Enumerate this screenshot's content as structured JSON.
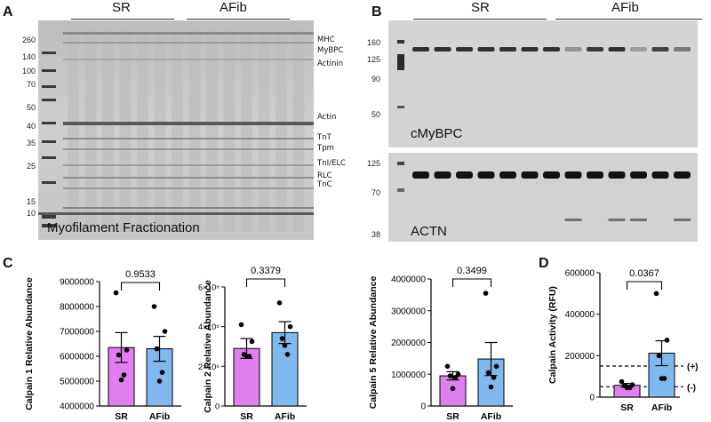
{
  "panels": {
    "A": {
      "letter": "A",
      "groups": [
        {
          "label": "SR"
        },
        {
          "label": "AFib"
        }
      ],
      "ladder": [
        "260",
        "140",
        "100",
        "70",
        "50",
        "40",
        "35",
        "25",
        "15",
        "10"
      ],
      "proteins": [
        "MHC",
        "MyBPC",
        "Actinin",
        "Actin",
        "TnT",
        "Tpm",
        "TnI/ELC",
        "RLC",
        "TnC"
      ],
      "caption": "Myofilament Fractionation"
    },
    "B": {
      "letter": "B",
      "groups": [
        {
          "label": "SR"
        },
        {
          "label": "AFib"
        }
      ],
      "top_ladder": [
        "160",
        "125",
        "90",
        "50"
      ],
      "bottom_ladder": [
        "125",
        "70",
        "38"
      ],
      "top_label": "cMyBPC",
      "bottom_label": "ACTN"
    },
    "C": {
      "letter": "C"
    },
    "D": {
      "letter": "D"
    }
  },
  "chart_data": [
    {
      "type": "bar",
      "categories": [
        "SR",
        "AFib"
      ],
      "ylabel": "Calpain 1 Relative Abundance",
      "ylim": [
        4000000,
        9000000
      ],
      "yticks": [
        "4000000",
        "5000000",
        "6000000",
        "7000000",
        "8000000",
        "9000000"
      ],
      "pvalue": "0.9533",
      "bar_colors": [
        "#e080f0",
        "#80b8f0"
      ],
      "means": [
        6350000,
        6300000
      ],
      "sem": [
        600000,
        500000
      ],
      "points": [
        [
          8550000,
          6250000,
          6050000,
          5250000,
          5050000
        ],
        [
          8000000,
          7000000,
          6300000,
          5350000,
          5000000
        ]
      ]
    },
    {
      "type": "bar",
      "categories": [
        "SR",
        "AFib"
      ],
      "ylabel": "Calpain 2 Relative Abundance",
      "ylim": [
        0,
        6000000
      ],
      "yticks": [
        "0",
        "2×10⁶",
        "4×10⁶",
        "6×10⁶"
      ],
      "pvalue": "0.3379",
      "bar_colors": [
        "#e080f0",
        "#80b8f0"
      ],
      "means": [
        2900000,
        3700000
      ],
      "sem": [
        500000,
        550000
      ],
      "points": [
        [
          4100000,
          3250000,
          2600000,
          2500000,
          2500000
        ],
        [
          5200000,
          4000000,
          3400000,
          2600000,
          3050000
        ]
      ]
    },
    {
      "type": "bar",
      "categories": [
        "SR",
        "AFib"
      ],
      "ylabel": "Calpain 5 Relative Abundance",
      "ylim": [
        0,
        4000000
      ],
      "yticks": [
        "0",
        "1000000",
        "2000000",
        "3000000",
        "4000000"
      ],
      "pvalue": "0.3499",
      "bar_colors": [
        "#e080f0",
        "#80b8f0"
      ],
      "means": [
        950000,
        1480000
      ],
      "sem": [
        130000,
        520000
      ],
      "points": [
        [
          1250000,
          1000000,
          950000,
          900000,
          550000
        ],
        [
          3550000,
          1250000,
          1050000,
          900000,
          600000
        ]
      ]
    },
    {
      "type": "bar",
      "categories": [
        "SR",
        "AFib"
      ],
      "ylabel": "Calpain Activity (RFU)",
      "ylim": [
        0,
        600000
      ],
      "yticks": [
        "0",
        "200000",
        "400000",
        "600000"
      ],
      "pvalue": "0.0367",
      "bar_colors": [
        "#e080f0",
        "#80b8f0"
      ],
      "means": [
        57000,
        212000
      ],
      "sem": [
        9000,
        60000
      ],
      "points": [
        [
          75000,
          60000,
          55000,
          45000,
          45000
        ],
        [
          500000,
          275000,
          200000,
          90000,
          90000
        ]
      ],
      "reference_lines": [
        {
          "label": "(+)",
          "value": 150000
        },
        {
          "label": "(-)",
          "value": 50000
        }
      ]
    }
  ]
}
